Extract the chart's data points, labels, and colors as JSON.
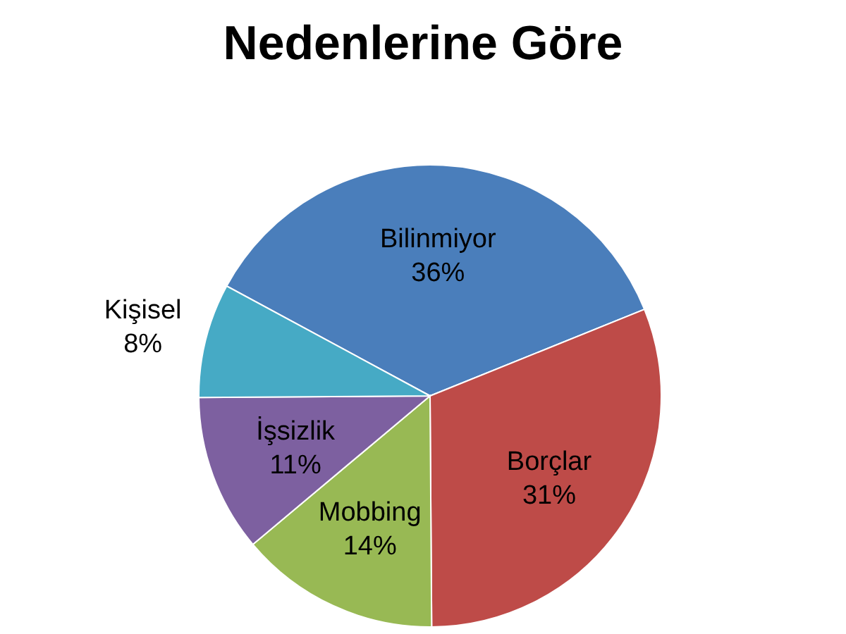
{
  "chart_data": {
    "type": "pie",
    "title": "Nedenlerine Göre",
    "categories": [
      "Bilinmiyor",
      "Borçlar",
      "Mobbing",
      "İşsizlik",
      "Kişisel"
    ],
    "values": [
      36,
      31,
      14,
      11,
      8
    ],
    "value_labels": [
      "36%",
      "31%",
      "14%",
      "11%",
      "8%"
    ],
    "colors": [
      "#4a7ebb",
      "#be4b48",
      "#98b954",
      "#7d60a0",
      "#46aac5"
    ]
  }
}
